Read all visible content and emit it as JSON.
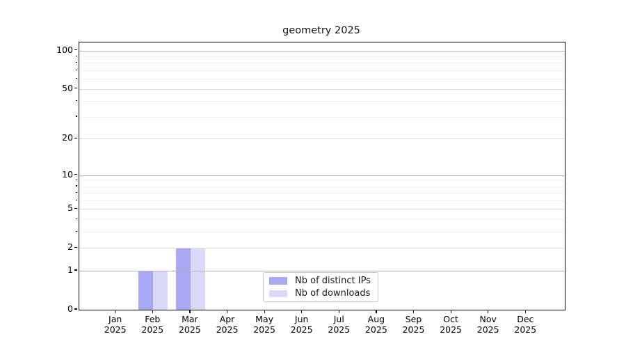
{
  "figure": {
    "title": "geometry 2025"
  },
  "chart_data": {
    "type": "bar",
    "title": "geometry 2025",
    "xlabel": "",
    "ylabel": "",
    "year": "2025",
    "categories": [
      "Jan",
      "Feb",
      "Mar",
      "Apr",
      "May",
      "Jun",
      "Jul",
      "Aug",
      "Sep",
      "Oct",
      "Nov",
      "Dec"
    ],
    "x_tick_labels": [
      "Jan 2025",
      "Feb 2025",
      "Mar 2025",
      "Apr 2025",
      "May 2025",
      "Jun 2025",
      "Jul 2025",
      "Aug 2025",
      "Sep 2025",
      "Oct 2025",
      "Nov 2025",
      "Dec 2025"
    ],
    "series": [
      {
        "name": "Nb of distinct IPs",
        "color": "#a8a8f2",
        "values": [
          0,
          1,
          2,
          0,
          0,
          0,
          0,
          0,
          0,
          0,
          0,
          0
        ]
      },
      {
        "name": "Nb of downloads",
        "color": "#dadaf8",
        "values": [
          0,
          1,
          2,
          0,
          0,
          0,
          0,
          0,
          0,
          0,
          0,
          0
        ]
      }
    ],
    "scale": "log1p",
    "ylim": [
      0,
      115.7
    ],
    "yticks": [
      0,
      1,
      2,
      5,
      10,
      20,
      50,
      100
    ],
    "yticks_minor": [
      3,
      4,
      6,
      7,
      8,
      9,
      30,
      40,
      60,
      70,
      80,
      90
    ],
    "emphasized_gridlines": [
      1,
      10,
      100
    ],
    "grid": true,
    "legend": {
      "position": "lower-center-inside",
      "entries": [
        "Nb of distinct IPs",
        "Nb of downloads"
      ]
    },
    "style": {
      "grid_emphasis_color": "#b2b2b2",
      "grid_major_color": "#dcdcdc",
      "grid_minor_color": "#efefef",
      "spine_color": "#000000",
      "background_color": "#ffffff",
      "legend_border_color": "#c9c9c9"
    }
  }
}
